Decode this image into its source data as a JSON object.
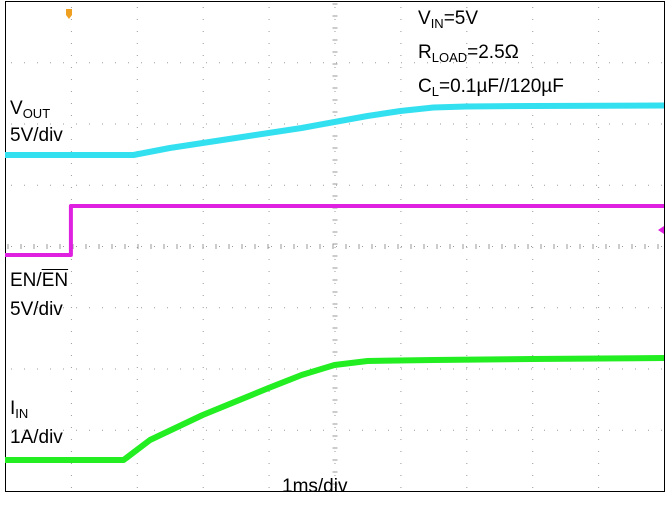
{
  "chart_data": {
    "type": "line",
    "title": "",
    "x_unit": "ms",
    "x_range": [
      -1.5,
      8.5
    ],
    "grid": true,
    "timebase": "1ms/div",
    "conditions": {
      "vin": {
        "symbol": "V",
        "sub": "IN",
        "value": "=5V"
      },
      "rload": {
        "symbol": "R",
        "sub": "LOAD",
        "value": "=2.5Ω"
      },
      "cl": {
        "symbol": "C",
        "sub": "L",
        "value": "=0.1µF//120µF"
      }
    },
    "series": [
      {
        "name": "VOUT",
        "label_main": "V",
        "label_sub": "OUT",
        "scale": "5V/div",
        "color": "#33e0f0",
        "y_unit": "V",
        "points": [
          [
            -1.5,
            0
          ],
          [
            0.45,
            0
          ],
          [
            1.0,
            0.7
          ],
          [
            2.0,
            1.7
          ],
          [
            3.0,
            2.7
          ],
          [
            3.5,
            3.3
          ],
          [
            4.0,
            3.9
          ],
          [
            4.5,
            4.4
          ],
          [
            5.0,
            4.75
          ],
          [
            5.5,
            4.85
          ],
          [
            6.5,
            4.9
          ],
          [
            8.5,
            4.95
          ]
        ]
      },
      {
        "name": "EN/EN",
        "label_main": "EN/",
        "label_over": "EN",
        "scale": "5V/div",
        "color": "#e020e0",
        "y_unit": "V",
        "points": [
          [
            -1.5,
            0
          ],
          [
            -0.5,
            0
          ],
          [
            -0.5,
            5
          ],
          [
            8.5,
            5
          ]
        ]
      },
      {
        "name": "IIN",
        "label_main": "I",
        "label_sub": "IN",
        "scale": "1A/div",
        "color": "#22ee22",
        "y_unit": "A",
        "points": [
          [
            -1.5,
            0
          ],
          [
            0.3,
            0
          ],
          [
            0.7,
            0.2
          ],
          [
            1.5,
            0.45
          ],
          [
            2.5,
            0.72
          ],
          [
            3.0,
            0.85
          ],
          [
            3.5,
            0.95
          ],
          [
            4.0,
            0.99
          ],
          [
            5.0,
            1.0
          ],
          [
            6.5,
            1.01
          ],
          [
            8.5,
            1.02
          ]
        ]
      }
    ]
  }
}
